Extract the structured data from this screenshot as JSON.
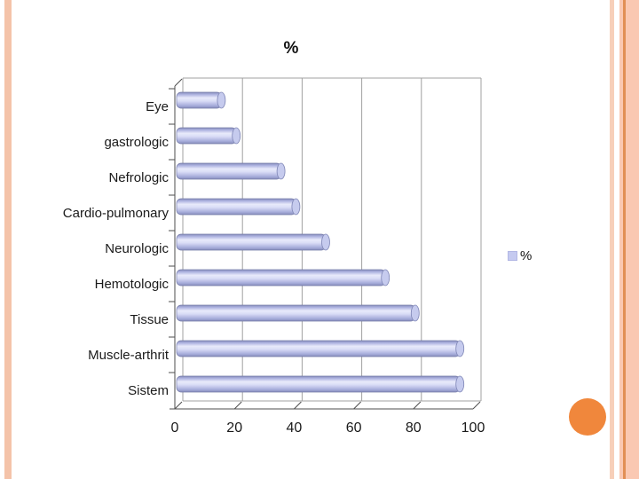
{
  "slide": {
    "background": "#ffffff",
    "decorations": {
      "left_stripe_color": "#f4c3a9",
      "right_stripe_color": "#f7cfb9",
      "right_band_color": "#fac8b2",
      "right_band_line_color": "#e18f55",
      "circle_color": "#f0873c"
    }
  },
  "chart_data": {
    "type": "bar",
    "orientation": "horizontal",
    "style": "3d-cylinder",
    "title": "%",
    "categories": [
      "Eye",
      "gastrologic",
      "Nefrologic",
      "Cardio-pulmonary",
      "Neurologic",
      "Hemotologic",
      "Tissue",
      "Muscle-arthrit",
      "Sistem"
    ],
    "series": [
      {
        "name": "%",
        "values": [
          15,
          20,
          35,
          40,
          50,
          70,
          80,
          95,
          95
        ]
      }
    ],
    "xlim": [
      0,
      100
    ],
    "x_ticks": [
      0,
      20,
      40,
      60,
      80,
      100
    ],
    "grid": true,
    "legend": {
      "label": "%",
      "position": "right",
      "swatch_color": "#c5caf0"
    },
    "colors": {
      "bar_fill": "#c5caf0",
      "bar_edge": "#767ca8",
      "bar_highlight": "#e8eafb",
      "bar_shadow": "#868cbc",
      "cap_fill": "#c6cbee",
      "gridline": "#a0a0a0",
      "axis": "#4d4d4d",
      "text": "#1a1a1a"
    }
  }
}
